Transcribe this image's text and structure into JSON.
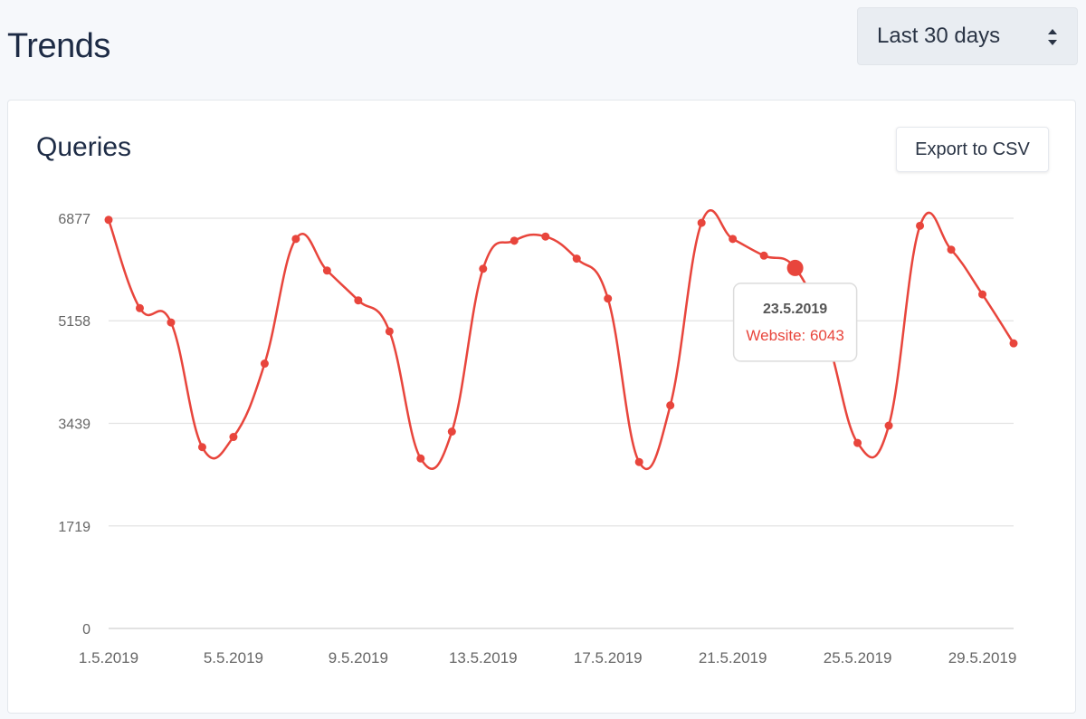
{
  "header": {
    "title": "Trends",
    "range_select_value": "Last 30 days"
  },
  "card": {
    "title": "Queries",
    "export_label": "Export to CSV"
  },
  "chart_data": {
    "type": "line",
    "title": "",
    "xlabel": "",
    "ylabel": "",
    "ylim": [
      0,
      6877
    ],
    "y_ticks": [
      0,
      1719,
      3439,
      5158,
      6877
    ],
    "y_tick_labels": [
      "0",
      "1719",
      "3439",
      "5158",
      "6877"
    ],
    "x": [
      "1.5.2019",
      "2.5.2019",
      "3.5.2019",
      "4.5.2019",
      "5.5.2019",
      "6.5.2019",
      "7.5.2019",
      "8.5.2019",
      "9.5.2019",
      "10.5.2019",
      "11.5.2019",
      "12.5.2019",
      "13.5.2019",
      "14.5.2019",
      "15.5.2019",
      "16.5.2019",
      "17.5.2019",
      "18.5.2019",
      "19.5.2019",
      "20.5.2019",
      "21.5.2019",
      "22.5.2019",
      "23.5.2019",
      "24.5.2019",
      "25.5.2019",
      "26.5.2019",
      "27.5.2019",
      "28.5.2019",
      "29.5.2019",
      "30.5.2019"
    ],
    "x_tick_labels": [
      "1.5.2019",
      "5.5.2019",
      "9.5.2019",
      "13.5.2019",
      "17.5.2019",
      "21.5.2019",
      "25.5.2019",
      "29.5.2019"
    ],
    "x_tick_indices": [
      0,
      4,
      8,
      12,
      16,
      20,
      24,
      28
    ],
    "grid": true,
    "series": [
      {
        "name": "Website",
        "color": "#e8453c",
        "values": [
          6850,
          5370,
          5130,
          3040,
          3210,
          4440,
          6530,
          6000,
          5500,
          4980,
          2850,
          3300,
          6030,
          6500,
          6570,
          6200,
          5530,
          2790,
          3740,
          6800,
          6530,
          6250,
          6043,
          4910,
          3110,
          3400,
          6750,
          6350,
          5600,
          4780
        ]
      }
    ],
    "tooltip": {
      "index": 22,
      "title": "23.5.2019",
      "label": "Website: 6043"
    }
  }
}
